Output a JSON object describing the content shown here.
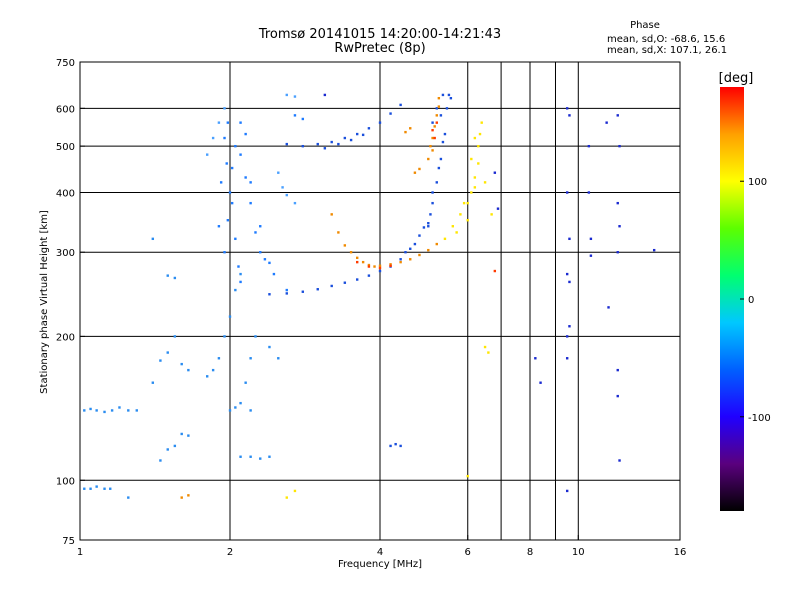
{
  "chart_data": {
    "type": "scatter",
    "title": "Tromsø 20141015 14:20:00-14:21:43",
    "subtitle": "RwPretec (8p)",
    "phase_info": {
      "heading": "Phase",
      "line1": "mean, sd,O: -68.6, 15.6",
      "line2": "mean, sd,X: 107.1, 26.1"
    },
    "xlabel": "Frequency [MHz]",
    "ylabel": "Stationary phase Virtual Height [km]",
    "xscale": "log",
    "yscale": "log",
    "xlim": [
      1,
      16
    ],
    "ylim": [
      75,
      750
    ],
    "x_ticks": [
      1,
      2,
      4,
      6,
      8,
      10,
      16
    ],
    "y_ticks": [
      75,
      100,
      200,
      300,
      400,
      500,
      600,
      750
    ],
    "grid": true,
    "grid_x": [
      2,
      4,
      6,
      7,
      8,
      9,
      10
    ],
    "grid_y": [
      100,
      200,
      300,
      400,
      500,
      600
    ],
    "colorbar": {
      "label": "[deg]",
      "min": -180,
      "max": 180,
      "ticks": [
        100,
        0,
        -100
      ],
      "colors": [
        "#000000",
        "#5a007e",
        "#2000ff",
        "#0060ff",
        "#00c8ff",
        "#00ff70",
        "#5cff00",
        "#ffff00",
        "#ffa000",
        "#ff0000"
      ]
    },
    "series": [
      {
        "color": "#2a8cf0",
        "points": [
          [
            1.02,
            140
          ],
          [
            1.05,
            141
          ],
          [
            1.08,
            140
          ],
          [
            1.12,
            139
          ],
          [
            1.16,
            140
          ],
          [
            1.2,
            142
          ],
          [
            1.25,
            140
          ],
          [
            1.3,
            140
          ],
          [
            1.02,
            96
          ],
          [
            1.05,
            96
          ],
          [
            1.08,
            97
          ],
          [
            1.12,
            96
          ],
          [
            1.15,
            96
          ],
          [
            1.25,
            92
          ],
          [
            1.4,
            160
          ],
          [
            1.45,
            178
          ],
          [
            1.5,
            185
          ],
          [
            1.55,
            200
          ],
          [
            1.6,
            175
          ],
          [
            1.65,
            170
          ],
          [
            1.5,
            116
          ],
          [
            1.55,
            118
          ],
          [
            1.6,
            125
          ],
          [
            1.65,
            124
          ],
          [
            1.45,
            110
          ],
          [
            1.4,
            320
          ],
          [
            1.5,
            268
          ],
          [
            1.55,
            265
          ],
          [
            1.8,
            165
          ],
          [
            1.85,
            170
          ],
          [
            1.9,
            180
          ],
          [
            1.95,
            200
          ],
          [
            2,
            220
          ],
          [
            2.05,
            250
          ],
          [
            2.1,
            270
          ],
          [
            2,
            140
          ],
          [
            2.05,
            142
          ],
          [
            2.1,
            145
          ],
          [
            2.15,
            160
          ],
          [
            2.2,
            180
          ],
          [
            2.25,
            200
          ],
          [
            2.2,
            140
          ],
          [
            2.1,
            112
          ],
          [
            2.2,
            112
          ],
          [
            2.3,
            111
          ],
          [
            2.4,
            112
          ],
          [
            2.5,
            180
          ],
          [
            2.4,
            190
          ]
        ]
      },
      {
        "color": "#1e7bff",
        "points": [
          [
            1.95,
            300
          ],
          [
            1.98,
            350
          ],
          [
            2,
            400
          ],
          [
            2.02,
            450
          ],
          [
            2.05,
            500
          ],
          [
            1.97,
            460
          ],
          [
            2.02,
            380
          ],
          [
            2.05,
            320
          ],
          [
            2.08,
            280
          ],
          [
            2.1,
            260
          ],
          [
            1.9,
            340
          ],
          [
            1.92,
            420
          ],
          [
            1.95,
            520
          ],
          [
            1.98,
            560
          ],
          [
            2.1,
            480
          ],
          [
            2.15,
            430
          ],
          [
            2.2,
            380
          ],
          [
            2.25,
            330
          ],
          [
            2.3,
            300
          ],
          [
            2.35,
            290
          ],
          [
            2.4,
            285
          ],
          [
            2.2,
            420
          ],
          [
            2.1,
            560
          ],
          [
            2.15,
            530
          ],
          [
            2.3,
            340
          ],
          [
            2.45,
            270
          ],
          [
            2.6,
            250
          ],
          [
            2.7,
            580
          ],
          [
            2.8,
            570
          ]
        ]
      },
      {
        "color": "#1a4fdc",
        "points": [
          [
            2.6,
            505
          ],
          [
            2.8,
            500
          ],
          [
            3,
            505
          ],
          [
            3.2,
            510
          ],
          [
            3.4,
            520
          ],
          [
            3.6,
            530
          ],
          [
            3.8,
            545
          ],
          [
            4,
            560
          ],
          [
            4.2,
            585
          ],
          [
            4.4,
            610
          ],
          [
            3.1,
            495
          ],
          [
            3.3,
            505
          ],
          [
            3.5,
            515
          ],
          [
            3.7,
            528
          ],
          [
            2.4,
            245
          ],
          [
            2.6,
            246
          ],
          [
            2.8,
            248
          ],
          [
            3,
            251
          ],
          [
            3.2,
            255
          ],
          [
            3.4,
            259
          ],
          [
            3.6,
            263
          ],
          [
            3.8,
            268
          ],
          [
            4,
            274
          ],
          [
            4.2,
            280
          ],
          [
            4.4,
            290
          ],
          [
            4.6,
            305
          ],
          [
            4.8,
            325
          ],
          [
            5,
            345
          ],
          [
            5.1,
            380
          ],
          [
            5.2,
            420
          ],
          [
            5.3,
            470
          ],
          [
            5.4,
            530
          ],
          [
            5.45,
            600
          ],
          [
            5.5,
            640
          ],
          [
            4.5,
            300
          ],
          [
            4.9,
            338
          ],
          [
            5.05,
            360
          ],
          [
            5.25,
            450
          ],
          [
            5.35,
            510
          ],
          [
            5.1,
            400
          ],
          [
            5.0,
            340
          ],
          [
            4.7,
            312
          ],
          [
            5.55,
            630
          ],
          [
            5.35,
            640
          ],
          [
            5.2,
            600
          ],
          [
            5.1,
            560
          ],
          [
            5.3,
            580
          ],
          [
            4.2,
            118
          ],
          [
            4.3,
            119
          ],
          [
            4.4,
            118
          ]
        ]
      },
      {
        "color": "#f08a00",
        "points": [
          [
            3.2,
            360
          ],
          [
            3.3,
            330
          ],
          [
            3.4,
            310
          ],
          [
            3.5,
            300
          ],
          [
            3.6,
            292
          ],
          [
            3.7,
            286
          ],
          [
            3.8,
            282
          ],
          [
            3.9,
            280
          ],
          [
            4,
            281
          ],
          [
            4.2,
            283
          ],
          [
            4.4,
            286
          ],
          [
            4.6,
            290
          ],
          [
            4.8,
            296
          ],
          [
            5,
            303
          ],
          [
            5.2,
            312
          ],
          [
            5.05,
            500
          ],
          [
            5.1,
            520
          ],
          [
            5.15,
            550
          ],
          [
            5.2,
            580
          ],
          [
            5.25,
            605
          ],
          [
            5.0,
            470
          ],
          [
            5.1,
            490
          ],
          [
            4.8,
            448
          ],
          [
            4.7,
            440
          ],
          [
            5.25,
            630
          ],
          [
            4.5,
            535
          ],
          [
            4.6,
            545
          ],
          [
            1.6,
            92
          ],
          [
            1.65,
            93
          ]
        ]
      },
      {
        "color": "#ff3a00",
        "points": [
          [
            3.6,
            286
          ],
          [
            3.8,
            280
          ],
          [
            4.0,
            278
          ],
          [
            4.2,
            281
          ],
          [
            5.1,
            540
          ],
          [
            5.2,
            560
          ],
          [
            5.15,
            520
          ],
          [
            6.8,
            274
          ]
        ]
      },
      {
        "color": "#ffe600",
        "points": [
          [
            5.4,
            320
          ],
          [
            5.6,
            340
          ],
          [
            5.8,
            360
          ],
          [
            6,
            380
          ],
          [
            6.1,
            400
          ],
          [
            6.2,
            430
          ],
          [
            6.3,
            460
          ],
          [
            6.3,
            500
          ],
          [
            6.35,
            530
          ],
          [
            6.4,
            560
          ],
          [
            6.2,
            520
          ],
          [
            6.1,
            470
          ],
          [
            5.9,
            380
          ],
          [
            6,
            350
          ],
          [
            6.5,
            190
          ],
          [
            6.6,
            185
          ],
          [
            6.5,
            420
          ],
          [
            6.7,
            360
          ],
          [
            6.2,
            410
          ],
          [
            5.7,
            330
          ],
          [
            6,
            102
          ],
          [
            2.6,
            92
          ],
          [
            2.7,
            95
          ]
        ]
      },
      {
        "color": "#4aa0ff",
        "points": [
          [
            1.8,
            480
          ],
          [
            1.85,
            520
          ],
          [
            1.9,
            560
          ],
          [
            1.95,
            600
          ],
          [
            2.6,
            640
          ],
          [
            2.7,
            635
          ],
          [
            2.5,
            440
          ],
          [
            2.55,
            410
          ],
          [
            2.6,
            395
          ],
          [
            2.7,
            380
          ]
        ]
      },
      {
        "color": "#1a2ad0",
        "points": [
          [
            9.5,
            600
          ],
          [
            9.6,
            580
          ],
          [
            9.5,
            400
          ],
          [
            9.6,
            320
          ],
          [
            9.5,
            270
          ],
          [
            9.6,
            260
          ],
          [
            9.5,
            200
          ],
          [
            9.6,
            210
          ],
          [
            9.5,
            180
          ],
          [
            10.5,
            500
          ],
          [
            10.5,
            400
          ],
          [
            10.6,
            320
          ],
          [
            10.6,
            295
          ],
          [
            11.4,
            560
          ],
          [
            12,
            580
          ],
          [
            12.1,
            500
          ],
          [
            12.0,
            380
          ],
          [
            12.1,
            340
          ],
          [
            12.0,
            300
          ],
          [
            11.5,
            230
          ],
          [
            12.0,
            170
          ],
          [
            12.1,
            110
          ],
          [
            9.5,
            95
          ],
          [
            6.8,
            440
          ],
          [
            6.9,
            370
          ],
          [
            8.2,
            180
          ],
          [
            8.4,
            160
          ],
          [
            14.2,
            303
          ],
          [
            12.0,
            150
          ],
          [
            3.1,
            640
          ]
        ]
      }
    ]
  }
}
